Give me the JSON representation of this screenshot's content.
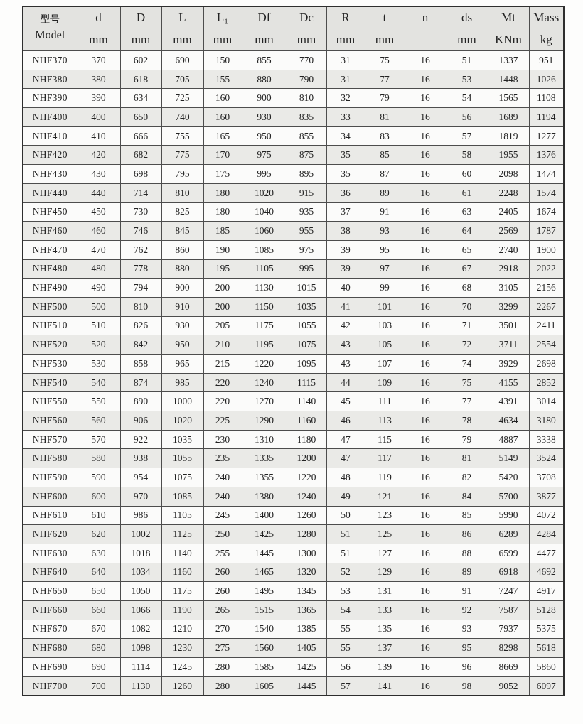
{
  "table": {
    "model_header": {
      "cn": "型号",
      "en": "Model"
    },
    "columns": [
      {
        "label": "d",
        "unit": "mm"
      },
      {
        "label": "D",
        "unit": "mm"
      },
      {
        "label": "L",
        "unit": "mm"
      },
      {
        "label": "L₁",
        "unit": "mm"
      },
      {
        "label": "Df",
        "unit": "mm"
      },
      {
        "label": "Dc",
        "unit": "mm"
      },
      {
        "label": "R",
        "unit": "mm"
      },
      {
        "label": "t",
        "unit": "mm"
      },
      {
        "label": "n",
        "unit": ""
      },
      {
        "label": "ds",
        "unit": "mm"
      },
      {
        "label": "Mt",
        "unit": "KNm"
      },
      {
        "label": "Mass",
        "unit": "kg"
      }
    ],
    "rows": [
      [
        "NHF370",
        370,
        602,
        690,
        150,
        855,
        770,
        31,
        75,
        16,
        51,
        1337,
        951
      ],
      [
        "NHF380",
        380,
        618,
        705,
        155,
        880,
        790,
        31,
        77,
        16,
        53,
        1448,
        1026
      ],
      [
        "NHF390",
        390,
        634,
        725,
        160,
        900,
        810,
        32,
        79,
        16,
        54,
        1565,
        1108
      ],
      [
        "NHF400",
        400,
        650,
        740,
        160,
        930,
        835,
        33,
        81,
        16,
        56,
        1689,
        1194
      ],
      [
        "NHF410",
        410,
        666,
        755,
        165,
        950,
        855,
        34,
        83,
        16,
        57,
        1819,
        1277
      ],
      [
        "NHF420",
        420,
        682,
        775,
        170,
        975,
        875,
        35,
        85,
        16,
        58,
        1955,
        1376
      ],
      [
        "NHF430",
        430,
        698,
        795,
        175,
        995,
        895,
        35,
        87,
        16,
        60,
        2098,
        1474
      ],
      [
        "NHF440",
        440,
        714,
        810,
        180,
        1020,
        915,
        36,
        89,
        16,
        61,
        2248,
        1574
      ],
      [
        "NHF450",
        450,
        730,
        825,
        180,
        1040,
        935,
        37,
        91,
        16,
        63,
        2405,
        1674
      ],
      [
        "NHF460",
        460,
        746,
        845,
        185,
        1060,
        955,
        38,
        93,
        16,
        64,
        2569,
        1787
      ],
      [
        "NHF470",
        470,
        762,
        860,
        190,
        1085,
        975,
        39,
        95,
        16,
        65,
        2740,
        1900
      ],
      [
        "NHF480",
        480,
        778,
        880,
        195,
        1105,
        995,
        39,
        97,
        16,
        67,
        2918,
        2022
      ],
      [
        "NHF490",
        490,
        794,
        900,
        200,
        1130,
        1015,
        40,
        99,
        16,
        68,
        3105,
        2156
      ],
      [
        "NHF500",
        500,
        810,
        910,
        200,
        1150,
        1035,
        41,
        101,
        16,
        70,
        3299,
        2267
      ],
      [
        "NHF510",
        510,
        826,
        930,
        205,
        1175,
        1055,
        42,
        103,
        16,
        71,
        3501,
        2411
      ],
      [
        "NHF520",
        520,
        842,
        950,
        210,
        1195,
        1075,
        43,
        105,
        16,
        72,
        3711,
        2554
      ],
      [
        "NHF530",
        530,
        858,
        965,
        215,
        1220,
        1095,
        43,
        107,
        16,
        74,
        3929,
        2698
      ],
      [
        "NHF540",
        540,
        874,
        985,
        220,
        1240,
        1115,
        44,
        109,
        16,
        75,
        4155,
        2852
      ],
      [
        "NHF550",
        550,
        890,
        1000,
        220,
        1270,
        1140,
        45,
        111,
        16,
        77,
        4391,
        3014
      ],
      [
        "NHF560",
        560,
        906,
        1020,
        225,
        1290,
        1160,
        46,
        113,
        16,
        78,
        4634,
        3180
      ],
      [
        "NHF570",
        570,
        922,
        1035,
        230,
        1310,
        1180,
        47,
        115,
        16,
        79,
        4887,
        3338
      ],
      [
        "NHF580",
        580,
        938,
        1055,
        235,
        1335,
        1200,
        47,
        117,
        16,
        81,
        5149,
        3524
      ],
      [
        "NHF590",
        590,
        954,
        1075,
        240,
        1355,
        1220,
        48,
        119,
        16,
        82,
        5420,
        3708
      ],
      [
        "NHF600",
        600,
        970,
        1085,
        240,
        1380,
        1240,
        49,
        121,
        16,
        84,
        5700,
        3877
      ],
      [
        "NHF610",
        610,
        986,
        1105,
        245,
        1400,
        1260,
        50,
        123,
        16,
        85,
        5990,
        4072
      ],
      [
        "NHF620",
        620,
        1002,
        1125,
        250,
        1425,
        1280,
        51,
        125,
        16,
        86,
        6289,
        4284
      ],
      [
        "NHF630",
        630,
        1018,
        1140,
        255,
        1445,
        1300,
        51,
        127,
        16,
        88,
        6599,
        4477
      ],
      [
        "NHF640",
        640,
        1034,
        1160,
        260,
        1465,
        1320,
        52,
        129,
        16,
        89,
        6918,
        4692
      ],
      [
        "NHF650",
        650,
        1050,
        1175,
        260,
        1495,
        1345,
        53,
        131,
        16,
        91,
        7247,
        4917
      ],
      [
        "NHF660",
        660,
        1066,
        1190,
        265,
        1515,
        1365,
        54,
        133,
        16,
        92,
        7587,
        5128
      ],
      [
        "NHF670",
        670,
        1082,
        1210,
        270,
        1540,
        1385,
        55,
        135,
        16,
        93,
        7937,
        5375
      ],
      [
        "NHF680",
        680,
        1098,
        1230,
        275,
        1560,
        1405,
        55,
        137,
        16,
        95,
        8298,
        5618
      ],
      [
        "NHF690",
        690,
        1114,
        1245,
        280,
        1585,
        1425,
        56,
        139,
        16,
        96,
        8669,
        5860
      ],
      [
        "NHF700",
        700,
        1130,
        1260,
        280,
        1605,
        1445,
        57,
        141,
        16,
        98,
        9052,
        6097
      ]
    ]
  }
}
